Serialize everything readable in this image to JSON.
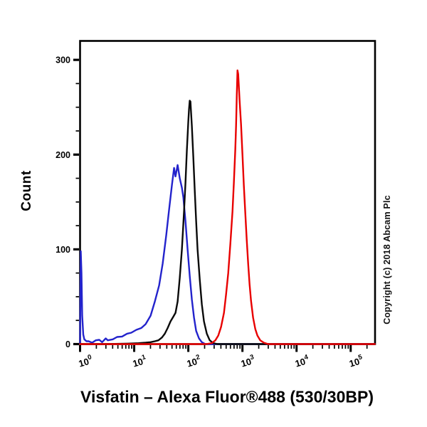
{
  "figure": {
    "background": "#ffffff",
    "title": "Visfatin – Alexa Fluor®488 (530/30BP)",
    "y_axis_title": "Count",
    "copyright": "Copyright (c) 2018 Abcam Plc"
  },
  "chart_data": {
    "type": "line",
    "subtype": "flow-cytometry-overlay-histogram",
    "title": "Visfatin – Alexa Fluor®488 (530/30BP)",
    "xlabel": "Visfatin – Alexa Fluor®488 (530/30BP)",
    "ylabel": "Count",
    "x_scale": "log10",
    "xlim_log10": [
      0,
      5.45
    ],
    "x_major_tick_base": "10",
    "x_major_tick_exponents": [
      0,
      1,
      2,
      3,
      4,
      5
    ],
    "ylim": [
      0,
      320
    ],
    "y_major_ticks": [
      0,
      100,
      200,
      300
    ],
    "y_minor_tick_step": 25,
    "grid": false,
    "legend": "none",
    "frame_color": "#000000",
    "series": [
      {
        "name": "blue",
        "color": "#2323cc",
        "peak": {
          "x_log10": 1.8,
          "count": 189
        },
        "points_log10x_count": [
          [
            0.0,
            0
          ],
          [
            0.007,
            55
          ],
          [
            0.013,
            98
          ],
          [
            0.026,
            75
          ],
          [
            0.039,
            30
          ],
          [
            0.059,
            10
          ],
          [
            0.079,
            5
          ],
          [
            0.118,
            3
          ],
          [
            0.158,
            3
          ],
          [
            0.224,
            1.5
          ],
          [
            0.289,
            4
          ],
          [
            0.355,
            4.5
          ],
          [
            0.408,
            2
          ],
          [
            0.474,
            6
          ],
          [
            0.513,
            4
          ],
          [
            0.605,
            5
          ],
          [
            0.684,
            7.5
          ],
          [
            0.776,
            8
          ],
          [
            0.868,
            11
          ],
          [
            0.947,
            12
          ],
          [
            1.039,
            15
          ],
          [
            1.132,
            17
          ],
          [
            1.211,
            21
          ],
          [
            1.303,
            30
          ],
          [
            1.382,
            45
          ],
          [
            1.461,
            62
          ],
          [
            1.526,
            85
          ],
          [
            1.592,
            115
          ],
          [
            1.645,
            142
          ],
          [
            1.697,
            168
          ],
          [
            1.737,
            186
          ],
          [
            1.763,
            177
          ],
          [
            1.803,
            189
          ],
          [
            1.842,
            175
          ],
          [
            1.882,
            165
          ],
          [
            1.908,
            155
          ],
          [
            1.947,
            130
          ],
          [
            1.987,
            100
          ],
          [
            2.026,
            72
          ],
          [
            2.066,
            47
          ],
          [
            2.105,
            28
          ],
          [
            2.145,
            14
          ],
          [
            2.197,
            6
          ],
          [
            2.25,
            2
          ],
          [
            2.316,
            0
          ],
          [
            5.447,
            0
          ]
        ]
      },
      {
        "name": "black",
        "color": "#0a0a0a",
        "peak": {
          "x_log10": 2.03,
          "count": 257
        },
        "points_log10x_count": [
          [
            0.0,
            0
          ],
          [
            0.487,
            0
          ],
          [
            0.882,
            0.5
          ],
          [
            1.079,
            1
          ],
          [
            1.211,
            1.5
          ],
          [
            1.303,
            2
          ],
          [
            1.382,
            3
          ],
          [
            1.447,
            4
          ],
          [
            1.513,
            7
          ],
          [
            1.566,
            11
          ],
          [
            1.618,
            17
          ],
          [
            1.671,
            24
          ],
          [
            1.724,
            29
          ],
          [
            1.763,
            33
          ],
          [
            1.803,
            45
          ],
          [
            1.842,
            70
          ],
          [
            1.882,
            100
          ],
          [
            1.921,
            140
          ],
          [
            1.947,
            170
          ],
          [
            1.974,
            205
          ],
          [
            2.0,
            235
          ],
          [
            2.013,
            248
          ],
          [
            2.026,
            257
          ],
          [
            2.039,
            256
          ],
          [
            2.066,
            230
          ],
          [
            2.092,
            198
          ],
          [
            2.118,
            163
          ],
          [
            2.145,
            130
          ],
          [
            2.171,
            100
          ],
          [
            2.211,
            68
          ],
          [
            2.25,
            42
          ],
          [
            2.289,
            24
          ],
          [
            2.342,
            11
          ],
          [
            2.395,
            4
          ],
          [
            2.461,
            1
          ],
          [
            2.539,
            0
          ],
          [
            5.447,
            0
          ]
        ]
      },
      {
        "name": "red",
        "color": "#e80000",
        "peak": {
          "x_log10": 2.91,
          "count": 289
        },
        "points_log10x_count": [
          [
            0.0,
            0
          ],
          [
            2.329,
            0
          ],
          [
            2.434,
            1
          ],
          [
            2.5,
            4
          ],
          [
            2.553,
            9
          ],
          [
            2.605,
            18
          ],
          [
            2.658,
            33
          ],
          [
            2.697,
            52
          ],
          [
            2.737,
            75
          ],
          [
            2.776,
            105
          ],
          [
            2.816,
            140
          ],
          [
            2.842,
            170
          ],
          [
            2.868,
            205
          ],
          [
            2.882,
            230
          ],
          [
            2.895,
            262
          ],
          [
            2.908,
            289
          ],
          [
            2.921,
            285
          ],
          [
            2.947,
            258
          ],
          [
            2.974,
            232
          ],
          [
            3.0,
            200
          ],
          [
            3.026,
            168
          ],
          [
            3.053,
            138
          ],
          [
            3.079,
            110
          ],
          [
            3.105,
            85
          ],
          [
            3.132,
            63
          ],
          [
            3.158,
            46
          ],
          [
            3.197,
            28
          ],
          [
            3.237,
            16
          ],
          [
            3.276,
            9
          ],
          [
            3.329,
            4
          ],
          [
            3.395,
            1.5
          ],
          [
            3.474,
            0
          ],
          [
            5.447,
            0
          ]
        ]
      }
    ]
  }
}
